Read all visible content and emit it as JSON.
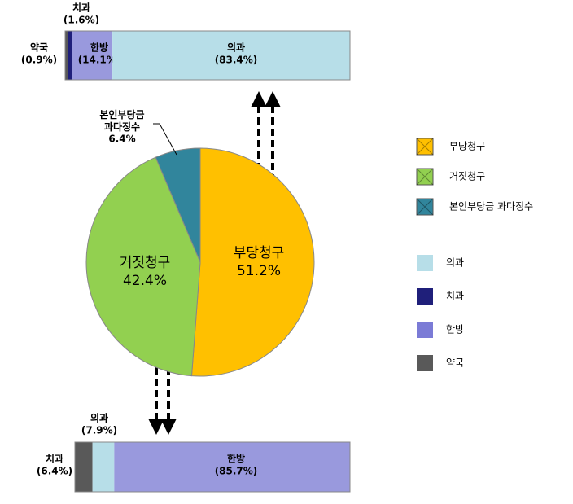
{
  "chart_data": [
    {
      "type": "pie",
      "categories": [
        "부당청구",
        "거짓청구",
        "본인부당금 과다징수"
      ],
      "values": [
        51.2,
        42.4,
        6.4
      ],
      "value_labels": [
        "51.2%",
        "42.4%",
        "6.4%"
      ],
      "colors": [
        "#ffc000",
        "#92d050",
        "#31859c"
      ]
    },
    {
      "type": "bar",
      "orientation": "horizontal",
      "stacked": true,
      "xlim": [
        0,
        100
      ],
      "series": [
        {
          "name": "약국",
          "color": "#595959",
          "values": [
            0.9
          ],
          "value_labels": [
            "(0.9%)"
          ]
        },
        {
          "name": "치과",
          "color": "#1f1f7a",
          "values": [
            1.6
          ],
          "value_labels": [
            "(1.6%)"
          ]
        },
        {
          "name": "한방",
          "color": "#9999dd",
          "values": [
            14.1
          ],
          "value_labels": [
            "(14.1%)"
          ]
        },
        {
          "name": "의과",
          "color": "#b7dee8",
          "values": [
            83.4
          ],
          "value_labels": [
            "(83.4%)"
          ]
        }
      ]
    },
    {
      "type": "bar",
      "orientation": "horizontal",
      "stacked": true,
      "xlim": [
        0,
        100
      ],
      "series": [
        {
          "name": "치과",
          "color": "#595959",
          "values": [
            6.4
          ],
          "value_labels": [
            "(6.4%)"
          ]
        },
        {
          "name": "의과",
          "color": "#b7dee8",
          "values": [
            7.9
          ],
          "value_labels": [
            "(7.9%)"
          ]
        },
        {
          "name": "한방",
          "color": "#9999dd",
          "values": [
            85.7
          ],
          "value_labels": [
            "(85.7%)"
          ]
        }
      ]
    }
  ],
  "bar_legend": [
    {
      "name": "의과",
      "color": "#b7dee8"
    },
    {
      "name": "치과",
      "color": "#1f1f7a"
    },
    {
      "name": "한방",
      "color": "#7b7bd6"
    },
    {
      "name": "약국",
      "color": "#595959"
    }
  ]
}
